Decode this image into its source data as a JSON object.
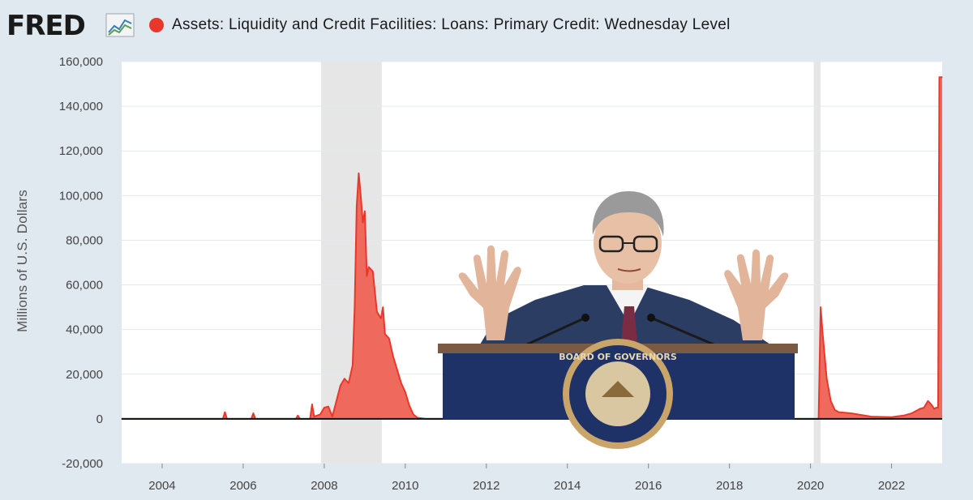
{
  "header": {
    "logo_text": "FRED",
    "logo_icon": "line-chart-icon",
    "title": "Assets: Liquidity and Credit Facilities: Loans: Primary Credit: Wednesday Level"
  },
  "colors": {
    "series": "#e8382b",
    "series_fill": "#ef6a5c",
    "recession": "#e6e6e6",
    "background": "#e1e9f0",
    "plot": "#ffffff",
    "grid": "#e4e9ef"
  },
  "overlay": {
    "description_icon": "fed-chair-podium-photo",
    "seal_text": "BOARD OF GOVERNORS"
  },
  "chart_data": {
    "type": "area",
    "title": "Assets: Liquidity and Credit Facilities: Loans: Primary Credit: Wednesday Level",
    "xlabel": "",
    "ylabel": "Millions of U.S. Dollars",
    "xlim": [
      2003.0,
      2023.25
    ],
    "ylim": [
      -20000,
      160000
    ],
    "grid": true,
    "legend": "top-left",
    "x_ticks": [
      2004,
      2006,
      2008,
      2010,
      2012,
      2014,
      2016,
      2018,
      2020,
      2022
    ],
    "x_tick_labels": [
      "2004",
      "2006",
      "2008",
      "2010",
      "2012",
      "2014",
      "2016",
      "2018",
      "2020",
      "2022"
    ],
    "y_ticks": [
      -20000,
      0,
      20000,
      40000,
      60000,
      80000,
      100000,
      120000,
      140000,
      160000
    ],
    "y_tick_labels": [
      "-20,000",
      "0",
      "20,000",
      "40,000",
      "60,000",
      "80,000",
      "100,000",
      "120,000",
      "140,000",
      "160,000"
    ],
    "recessions": [
      {
        "start": 2007.92,
        "end": 2009.42
      },
      {
        "start": 2020.08,
        "end": 2020.25
      }
    ],
    "series": [
      {
        "name": "Assets: Liquidity and Credit Facilities: Loans: Primary Credit: Wednesday Level",
        "points": [
          [
            2003.0,
            0
          ],
          [
            2005.5,
            0
          ],
          [
            2005.55,
            3000
          ],
          [
            2005.6,
            0
          ],
          [
            2006.2,
            0
          ],
          [
            2006.25,
            2500
          ],
          [
            2006.3,
            0
          ],
          [
            2007.3,
            0
          ],
          [
            2007.35,
            1500
          ],
          [
            2007.4,
            0
          ],
          [
            2007.65,
            0
          ],
          [
            2007.7,
            6500
          ],
          [
            2007.75,
            1000
          ],
          [
            2007.9,
            2000
          ],
          [
            2008.0,
            5000
          ],
          [
            2008.1,
            5500
          ],
          [
            2008.2,
            1000
          ],
          [
            2008.3,
            8000
          ],
          [
            2008.4,
            15000
          ],
          [
            2008.5,
            18000
          ],
          [
            2008.6,
            16000
          ],
          [
            2008.7,
            24000
          ],
          [
            2008.75,
            50000
          ],
          [
            2008.8,
            95000
          ],
          [
            2008.85,
            110000
          ],
          [
            2008.9,
            100000
          ],
          [
            2008.95,
            88000
          ],
          [
            2009.0,
            93000
          ],
          [
            2009.05,
            64000
          ],
          [
            2009.1,
            68000
          ],
          [
            2009.2,
            66000
          ],
          [
            2009.3,
            48000
          ],
          [
            2009.4,
            45000
          ],
          [
            2009.45,
            50000
          ],
          [
            2009.5,
            38000
          ],
          [
            2009.6,
            36000
          ],
          [
            2009.7,
            28000
          ],
          [
            2009.8,
            22000
          ],
          [
            2009.9,
            16000
          ],
          [
            2010.0,
            12000
          ],
          [
            2010.1,
            6000
          ],
          [
            2010.2,
            2000
          ],
          [
            2010.3,
            500
          ],
          [
            2010.5,
            0
          ],
          [
            2020.2,
            0
          ],
          [
            2020.22,
            20000
          ],
          [
            2020.25,
            50000
          ],
          [
            2020.3,
            38000
          ],
          [
            2020.4,
            18000
          ],
          [
            2020.5,
            8000
          ],
          [
            2020.6,
            4000
          ],
          [
            2020.7,
            3000
          ],
          [
            2021.0,
            2500
          ],
          [
            2021.5,
            1000
          ],
          [
            2022.0,
            800
          ],
          [
            2022.3,
            1500
          ],
          [
            2022.5,
            2500
          ],
          [
            2022.7,
            4500
          ],
          [
            2022.8,
            5000
          ],
          [
            2022.9,
            8000
          ],
          [
            2023.0,
            6000
          ],
          [
            2023.05,
            4500
          ],
          [
            2023.1,
            5000
          ],
          [
            2023.15,
            5000
          ],
          [
            2023.18,
            153000
          ],
          [
            2023.25,
            153000
          ]
        ]
      }
    ]
  }
}
